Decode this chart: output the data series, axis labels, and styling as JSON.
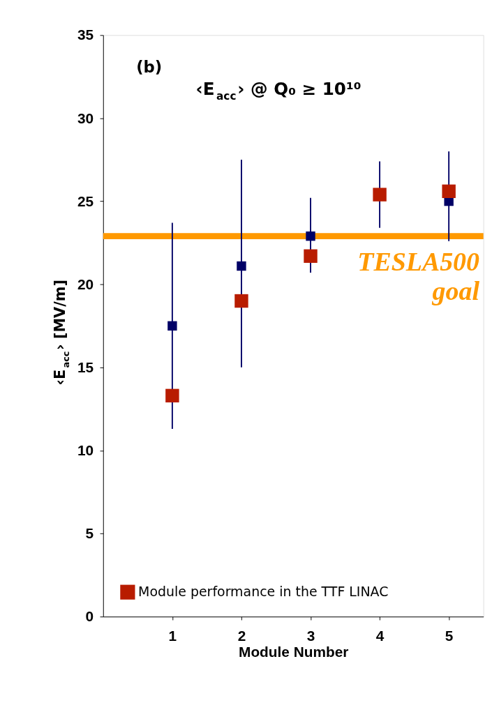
{
  "chart_data": {
    "type": "scatter",
    "title": "‹E$_{acc}$› @ Q₀ ≥ 10¹⁰",
    "xlabel": "Module Number",
    "ylabel": "‹E$_{acc}$› [MV/m]",
    "x": [
      1,
      2,
      3,
      4,
      5
    ],
    "series": [
      {
        "color": "#000066",
        "values": [
          17.5,
          21.1,
          22.9,
          null,
          25.0
        ],
        "errors": [
          [
            11.3,
            23.7
          ],
          [
            15.0,
            27.5
          ],
          [
            20.7,
            25.2
          ],
          null,
          [
            22.6,
            28.0
          ]
        ]
      },
      {
        "name": "Module performance in the TTF LINAC",
        "color": "#b81c00",
        "values": [
          13.3,
          19.0,
          21.7,
          25.4,
          25.6
        ],
        "errors": [
          null,
          null,
          null,
          [
            23.4,
            27.4
          ],
          null
        ]
      }
    ],
    "marker": "square",
    "xlim": [
      0,
      5.5
    ],
    "xticks": [
      1,
      2,
      3,
      4,
      5
    ],
    "ylim": [
      0,
      35
    ],
    "yticks": [
      0,
      5,
      10,
      15,
      20,
      25,
      30,
      35
    ],
    "ref_lines": [
      {
        "axis": "y",
        "value": 22.9,
        "label": "TESLA500 goal",
        "color": "#ff9900"
      }
    ],
    "annotations": [
      "(b)"
    ],
    "grid": false,
    "legend": "bottom left"
  }
}
